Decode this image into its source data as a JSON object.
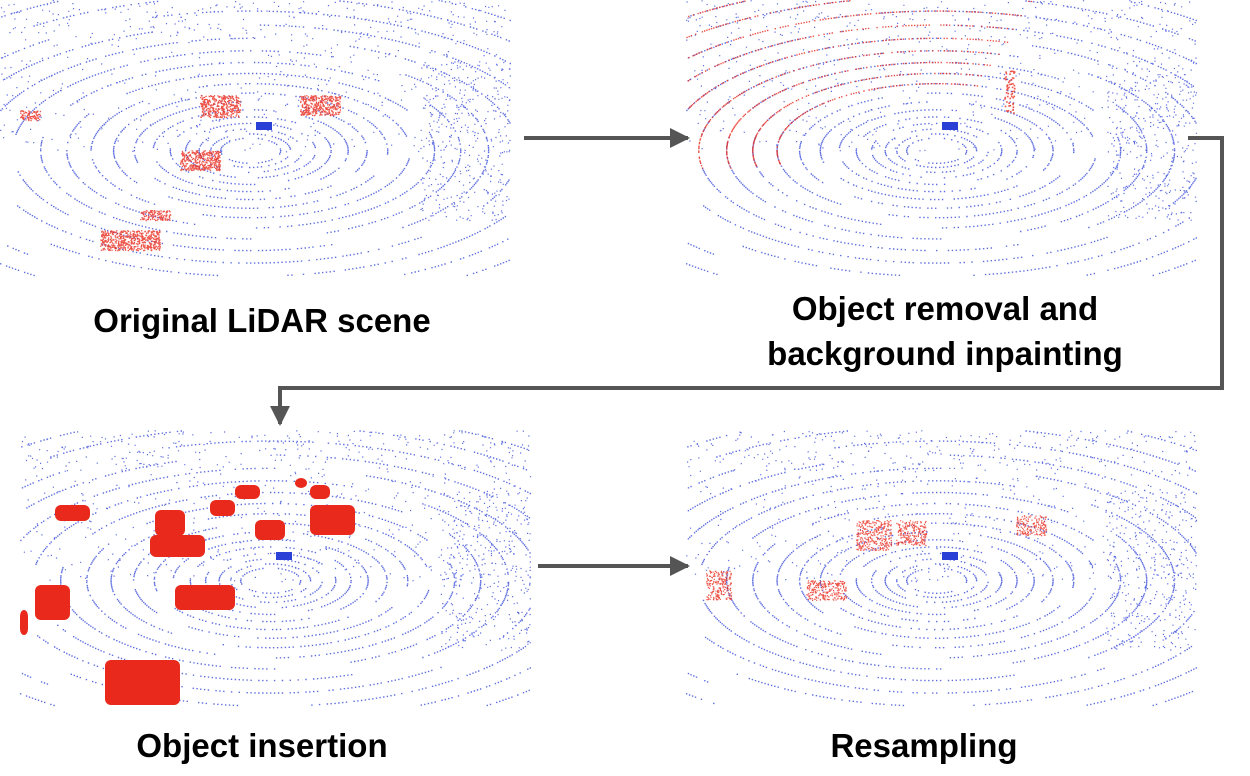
{
  "panels": [
    {
      "id": "original",
      "label_lines": [
        "Original LiDAR scene"
      ],
      "variant": "original"
    },
    {
      "id": "removal",
      "label_lines": [
        "Object removal and",
        "background inpainting"
      ],
      "variant": "removal"
    },
    {
      "id": "insertion",
      "label_lines": [
        "Object insertion"
      ],
      "variant": "insertion"
    },
    {
      "id": "resampling",
      "label_lines": [
        "Resampling"
      ],
      "variant": "resampling"
    }
  ],
  "colors": {
    "background_points": "#2a3fd6",
    "object_points": "#e8291c",
    "arrow": "#555555",
    "text": "#000000"
  }
}
